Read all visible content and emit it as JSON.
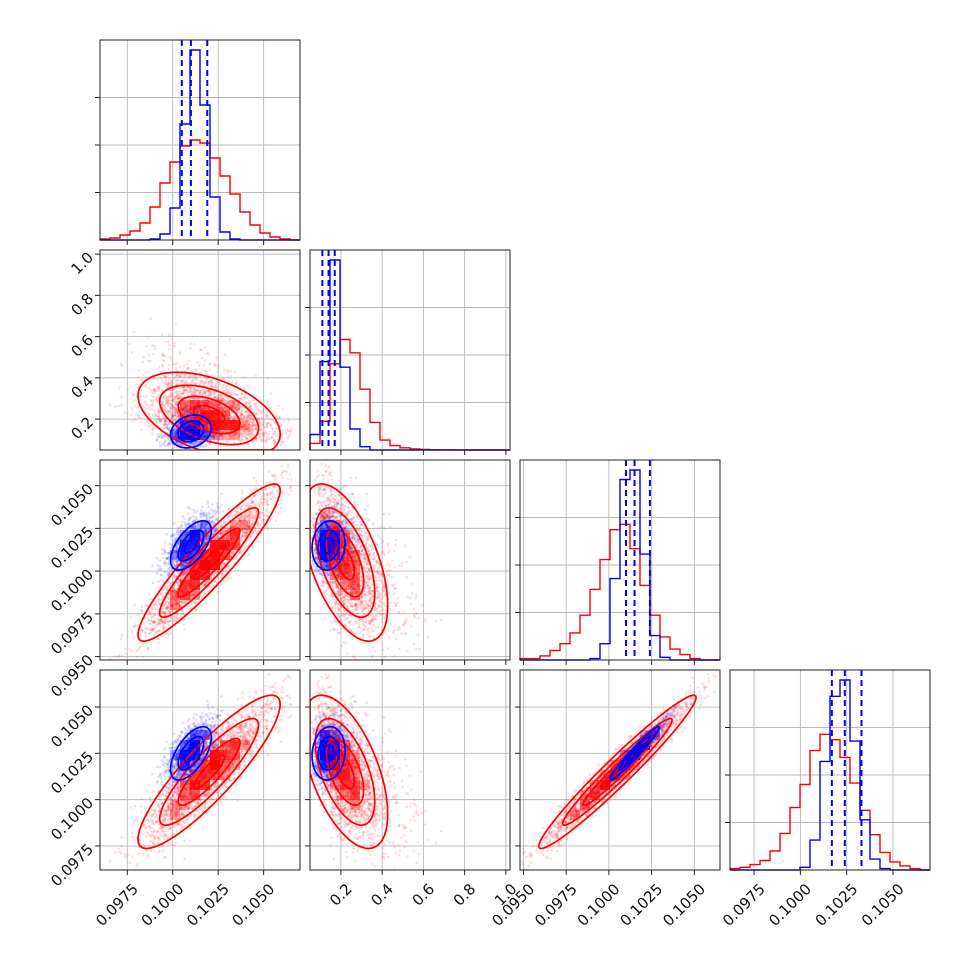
{
  "chart_data": {
    "type": "corner",
    "title": "",
    "grid": true,
    "colors": {
      "red": "#ff0000",
      "blue": "#0000ff"
    },
    "parameters": [
      {
        "range": [
          0.096,
          0.107
        ],
        "ticks": [
          0.0975,
          0.1,
          0.1025,
          0.105
        ],
        "ticklabels": [
          "0.0975",
          "0.1000",
          "0.1025",
          "0.1050"
        ]
      },
      {
        "range": [
          0.05,
          1.02
        ],
        "ticks": [
          0.2,
          0.4,
          0.6,
          0.8,
          1.0
        ],
        "ticklabels": [
          "0.2",
          "0.4",
          "0.6",
          "0.8",
          "1.0"
        ]
      },
      {
        "range": [
          0.0948,
          0.1065
        ],
        "ticks": [
          0.095,
          0.0975,
          0.1,
          0.1025,
          0.105
        ],
        "ticklabels": [
          "0.0950",
          "0.0975",
          "0.1000",
          "0.1025",
          "0.1050"
        ]
      },
      {
        "range": [
          0.0962,
          0.107
        ],
        "ticks": [
          0.0975,
          0.1,
          0.1025,
          0.105
        ],
        "ticklabels": [
          "0.0975",
          "0.1000",
          "0.1025",
          "0.1050"
        ]
      }
    ],
    "series": [
      {
        "color": "red",
        "means": [
          0.102,
          0.22,
          0.1005,
          0.1015
        ],
        "sds": [
          0.0017,
          0.09,
          0.002,
          0.0018
        ],
        "corr": [
          [
            1,
            -0.45,
            0.92,
            0.88
          ],
          [
            -0.45,
            1,
            -0.55,
            -0.55
          ],
          [
            0.92,
            -0.55,
            1,
            0.97
          ],
          [
            0.88,
            -0.55,
            0.97,
            1
          ]
        ],
        "histograms": [
          {
            "edges": [
              0.096,
              0.09655,
              0.0971,
              0.09765,
              0.0982,
              0.09875,
              0.0993,
              0.09985,
              0.1004,
              0.10095,
              0.1015,
              0.10205,
              0.1026,
              0.10315,
              0.1037,
              0.10425,
              0.1048,
              0.10535,
              0.1059,
              0.10645,
              0.107
            ],
            "counts": [
              1,
              2,
              5,
              9,
              17,
              33,
              57,
              78,
              94,
              100,
              97,
              82,
              64,
              46,
              28,
              15,
              7,
              3,
              1,
              0
            ]
          },
          {
            "edges": [
              0.05,
              0.0985,
              0.147,
              0.1955,
              0.244,
              0.2925,
              0.341,
              0.3895,
              0.438,
              0.4865,
              0.535,
              0.5835,
              0.632,
              0.6805,
              0.729,
              0.7775,
              0.826,
              0.8745,
              0.923,
              0.9715,
              1.02
            ],
            "counts": [
              6,
              26,
              78,
              100,
              88,
              55,
              25,
              9,
              4,
              2,
              1,
              0.5,
              0.3,
              0.2,
              0.1,
              0.1,
              0,
              0,
              0,
              0
            ]
          },
          {
            "edges": [
              0.0948,
              0.095385,
              0.09597,
              0.096555,
              0.09714,
              0.097725,
              0.09831,
              0.098895,
              0.09948,
              0.100065,
              0.10065,
              0.101235,
              0.10182,
              0.102405,
              0.10299,
              0.103575,
              0.10416,
              0.104745,
              0.10533,
              0.105915,
              0.1065
            ],
            "counts": [
              1,
              1,
              3,
              7,
              12,
              20,
              33,
              52,
              74,
              96,
              100,
              82,
              55,
              33,
              17,
              8,
              4,
              1,
              0,
              0
            ]
          },
          {
            "edges": [
              0.0962,
              0.09674,
              0.09728,
              0.09782,
              0.09836,
              0.0989,
              0.09944,
              0.09998,
              0.10052,
              0.10106,
              0.1016,
              0.10214,
              0.10268,
              0.10322,
              0.10376,
              0.1043,
              0.10484,
              0.10538,
              0.10592,
              0.10646,
              0.107
            ],
            "counts": [
              1,
              2,
              4,
              7,
              14,
              27,
              46,
              63,
              88,
              100,
              96,
              83,
              64,
              44,
              26,
              13,
              6,
              3,
              1,
              0
            ]
          }
        ]
      },
      {
        "color": "blue",
        "means": [
          0.101,
          0.14,
          0.1015,
          0.1025
        ],
        "sds": [
          0.0007,
          0.05,
          0.0009,
          0.0009
        ],
        "corr": [
          [
            1,
            0.2,
            0.6,
            0.6
          ],
          [
            0.2,
            1,
            0.1,
            0.1
          ],
          [
            0.6,
            0.1,
            1,
            0.97
          ],
          [
            0.6,
            0.1,
            0.97,
            1
          ]
        ],
        "quantiles": [
          [
            0.1005,
            0.101,
            0.1019
          ],
          [
            0.11,
            0.14,
            0.17
          ],
          [
            0.101,
            0.1015,
            0.1024
          ],
          [
            0.1017,
            0.1024,
            0.1033
          ]
        ],
        "histograms": [
          {
            "edges": [
              0.096,
              0.09655,
              0.0971,
              0.09765,
              0.0982,
              0.09875,
              0.0993,
              0.09985,
              0.1004,
              0.10095,
              0.1015,
              0.10205,
              0.1026,
              0.10315,
              0.1037,
              0.10425,
              0.1048,
              0.10535,
              0.1059,
              0.10645,
              0.107
            ],
            "counts": [
              0,
              0,
              0,
              0,
              0,
              1,
              6,
              32,
              116,
              190,
              135,
              43,
              8,
              1,
              0,
              0,
              0,
              0,
              0,
              0
            ]
          },
          {
            "edges": [
              0.05,
              0.0985,
              0.147,
              0.1955,
              0.244,
              0.2925,
              0.341,
              0.3895,
              0.438,
              0.4865,
              0.535,
              0.5835,
              0.632,
              0.6805,
              0.729,
              0.7775,
              0.826,
              0.8745,
              0.923,
              0.9715,
              1.02
            ],
            "counts": [
              14,
              80,
              172,
              75,
              19,
              3,
              0,
              0,
              0,
              0,
              0,
              0,
              0,
              0,
              0,
              0,
              0,
              0,
              0,
              0
            ]
          },
          {
            "edges": [
              0.0948,
              0.095385,
              0.09597,
              0.096555,
              0.09714,
              0.097725,
              0.09831,
              0.098895,
              0.09948,
              0.100065,
              0.10065,
              0.101235,
              0.10182,
              0.102405,
              0.10299,
              0.103575,
              0.10416,
              0.104745,
              0.10533,
              0.105915,
              0.1065
            ],
            "counts": [
              0,
              0,
              0,
              0,
              0,
              0,
              0,
              1,
              12,
              60,
              133,
              140,
              78,
              18,
              2,
              0,
              0,
              0,
              0,
              0
            ]
          },
          {
            "edges": [
              0.0962,
              0.09674,
              0.09728,
              0.09782,
              0.09836,
              0.0989,
              0.09944,
              0.09998,
              0.10052,
              0.10106,
              0.1016,
              0.10214,
              0.10268,
              0.10322,
              0.10376,
              0.1043,
              0.10484,
              0.10538,
              0.10592,
              0.10646,
              0.107
            ],
            "counts": [
              0,
              0,
              0,
              0,
              0,
              0,
              0,
              2,
              22,
              80,
              128,
              140,
              95,
              37,
              8,
              1,
              0,
              0,
              0,
              0
            ]
          }
        ]
      }
    ]
  }
}
